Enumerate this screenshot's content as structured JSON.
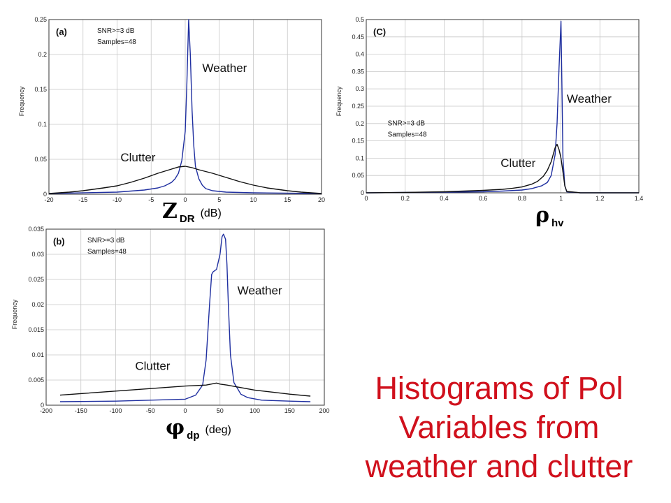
{
  "slide_title": {
    "line1": "Histograms of Pol",
    "line2": "Variables from",
    "line3": "weather and clutter"
  },
  "colors": {
    "weather": "#1f2fa0",
    "clutter": "#111111",
    "title": "#d0101c",
    "grid": "#c8c8c8"
  },
  "chart_data": [
    {
      "id": "a",
      "type": "line",
      "panel_label": "(a)",
      "notes": [
        "SNR>=3 dB",
        "Samples=48"
      ],
      "xlabel_symbol": "Z",
      "xlabel_sub": "DR",
      "xlabel_unit": "(dB)",
      "ylabel": "Frequency",
      "xlim": [
        -20,
        20
      ],
      "ylim": [
        0,
        0.25
      ],
      "xticks": [
        -20,
        -15,
        -10,
        -5,
        0,
        5,
        10,
        15,
        20
      ],
      "yticks": [
        0,
        0.05,
        0.1,
        0.15,
        0.2,
        0.25
      ],
      "grid": true,
      "annotations": [
        {
          "text": "Weather",
          "x": 2.5,
          "y": 0.175
        },
        {
          "text": "Clutter",
          "x": -9.5,
          "y": 0.047
        }
      ],
      "series": [
        {
          "name": "Weather",
          "color_key": "weather",
          "x": [
            -20,
            -10,
            -6,
            -4,
            -3,
            -2,
            -1.5,
            -1,
            -0.5,
            0,
            0.25,
            0.5,
            0.75,
            1,
            1.25,
            1.5,
            2,
            2.5,
            3,
            4,
            6,
            10,
            20
          ],
          "y": [
            0.001,
            0.003,
            0.006,
            0.009,
            0.012,
            0.017,
            0.022,
            0.03,
            0.048,
            0.09,
            0.16,
            0.25,
            0.2,
            0.12,
            0.07,
            0.04,
            0.022,
            0.013,
            0.008,
            0.005,
            0.003,
            0.002,
            0.001
          ]
        },
        {
          "name": "Clutter",
          "color_key": "clutter",
          "x": [
            -20,
            -17,
            -15,
            -12,
            -10,
            -8,
            -6,
            -4,
            -2,
            -1,
            0,
            1,
            2,
            4,
            6,
            8,
            10,
            12,
            15,
            17,
            20
          ],
          "y": [
            0.001,
            0.003,
            0.005,
            0.009,
            0.012,
            0.017,
            0.023,
            0.03,
            0.036,
            0.039,
            0.04,
            0.038,
            0.035,
            0.03,
            0.024,
            0.018,
            0.013,
            0.009,
            0.005,
            0.003,
            0.001
          ]
        }
      ]
    },
    {
      "id": "c",
      "type": "line",
      "panel_label": "(C)",
      "notes": [
        "SNR>=3 dB",
        "Samples=48"
      ],
      "xlabel_symbol": "ρ",
      "xlabel_sub": "hv",
      "xlabel_unit": "",
      "ylabel": "Frequency",
      "xlim": [
        0,
        1.4
      ],
      "ylim": [
        0,
        0.5
      ],
      "xticks": [
        0,
        0.2,
        0.4,
        0.6,
        0.8,
        1,
        1.2,
        1.4
      ],
      "yticks": [
        0,
        0.05,
        0.1,
        0.15,
        0.2,
        0.25,
        0.3,
        0.35,
        0.4,
        0.45,
        0.5
      ],
      "grid": true,
      "annotations": [
        {
          "text": "Weather",
          "x": 1.03,
          "y": 0.26
        },
        {
          "text": "Clutter",
          "x": 0.69,
          "y": 0.075
        }
      ],
      "series": [
        {
          "name": "Weather",
          "color_key": "weather",
          "x": [
            0,
            0.2,
            0.4,
            0.6,
            0.7,
            0.8,
            0.85,
            0.9,
            0.93,
            0.95,
            0.97,
            0.98,
            0.99,
            1.0,
            1.005,
            1.01,
            1.02,
            1.03,
            1.1,
            1.2,
            1.4
          ],
          "y": [
            0,
            0.001,
            0.002,
            0.003,
            0.005,
            0.008,
            0.012,
            0.02,
            0.03,
            0.05,
            0.11,
            0.2,
            0.36,
            0.495,
            0.3,
            0.1,
            0.02,
            0.003,
            0,
            0,
            0
          ]
        },
        {
          "name": "Clutter",
          "color_key": "clutter",
          "x": [
            0,
            0.2,
            0.4,
            0.5,
            0.6,
            0.7,
            0.75,
            0.8,
            0.85,
            0.88,
            0.91,
            0.93,
            0.95,
            0.97,
            0.98,
            0.99,
            1.0,
            1.01,
            1.02,
            1.03,
            1.1,
            1.2,
            1.4
          ],
          "y": [
            0,
            0.001,
            0.003,
            0.005,
            0.007,
            0.01,
            0.013,
            0.017,
            0.025,
            0.033,
            0.048,
            0.065,
            0.09,
            0.13,
            0.14,
            0.125,
            0.1,
            0.06,
            0.02,
            0.004,
            0,
            0,
            0
          ]
        }
      ]
    },
    {
      "id": "b",
      "type": "line",
      "panel_label": "(b)",
      "notes": [
        "SNR>=3 dB",
        "Samples=48"
      ],
      "xlabel_symbol": "φ",
      "xlabel_sub": "dp",
      "xlabel_unit": "(deg)",
      "ylabel": "Frequency",
      "xlim": [
        -200,
        200
      ],
      "ylim": [
        0,
        0.035
      ],
      "xticks": [
        -200,
        -150,
        -100,
        -50,
        0,
        50,
        100,
        150,
        200
      ],
      "yticks": [
        0,
        0.005,
        0.01,
        0.015,
        0.02,
        0.025,
        0.03,
        0.035
      ],
      "grid": true,
      "annotations": [
        {
          "text": "Weather",
          "x": 75,
          "y": 0.022
        },
        {
          "text": "Clutter",
          "x": -72,
          "y": 0.007
        }
      ],
      "series": [
        {
          "name": "Weather",
          "color_key": "weather",
          "x": [
            -180,
            -100,
            -50,
            0,
            15,
            25,
            30,
            35,
            38,
            40,
            45,
            50,
            53,
            55,
            58,
            60,
            62,
            65,
            70,
            80,
            90,
            110,
            150,
            180
          ],
          "y": [
            0.0007,
            0.0008,
            0.001,
            0.0012,
            0.002,
            0.004,
            0.009,
            0.02,
            0.026,
            0.0265,
            0.027,
            0.03,
            0.0335,
            0.034,
            0.033,
            0.028,
            0.02,
            0.01,
            0.0045,
            0.0022,
            0.0015,
            0.001,
            0.0008,
            0.0007
          ]
        },
        {
          "name": "Clutter",
          "color_key": "clutter",
          "x": [
            -180,
            -150,
            -100,
            -50,
            0,
            30,
            45,
            50,
            60,
            100,
            150,
            180
          ],
          "y": [
            0.002,
            0.0023,
            0.0028,
            0.0033,
            0.0038,
            0.004,
            0.0044,
            0.0042,
            0.004,
            0.003,
            0.0022,
            0.0018
          ]
        }
      ]
    }
  ]
}
